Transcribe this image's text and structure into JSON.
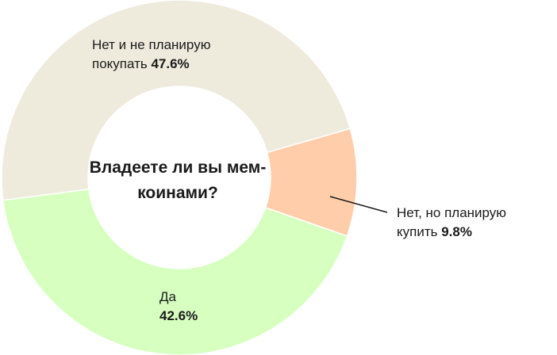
{
  "chart_data": {
    "type": "pie",
    "title": "Владеете ли вы мем-коинами?",
    "slices": [
      {
        "label": "Нет, но планирую купить",
        "line1": "Нет, но планирую",
        "line2": "купить",
        "value": 9.8,
        "value_text": "9.8%",
        "color": "#FFCDAA"
      },
      {
        "label": "Да",
        "line1": "Да",
        "line2": "",
        "value": 42.6,
        "value_text": "42.6%",
        "color": "#D6FFC0"
      },
      {
        "label": "Нет и не планирую покупать",
        "line1": "Нет и не планирую",
        "line2": "покупать",
        "value": 47.6,
        "value_text": "47.6%",
        "color": "#EEEBDD"
      }
    ]
  }
}
